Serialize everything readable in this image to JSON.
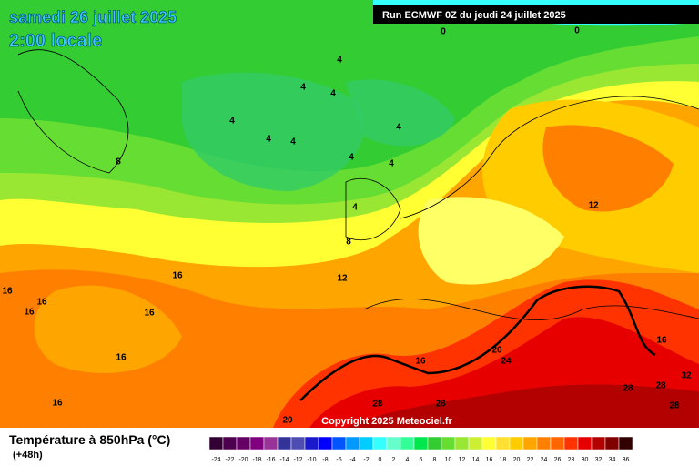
{
  "header": {
    "date": "samedi 26 juillet 2025",
    "time": "2:00 locale",
    "run": "Run ECMWF 0Z du jeudi 24 juillet 2025"
  },
  "footer": {
    "title": "Température à 850hPa (°C)",
    "lead": "(+48h)",
    "copyright": "Copyright 2025 Meteociel.fr"
  },
  "contour_labels": [
    "0",
    "0",
    "4",
    "4",
    "4",
    "4",
    "4",
    "4",
    "4",
    "4",
    "4",
    "8",
    "4",
    "8",
    "12",
    "16",
    "12",
    "16",
    "16",
    "16",
    "16",
    "16",
    "16",
    "20",
    "24",
    "16",
    "16",
    "28",
    "28",
    "28",
    "28",
    "32",
    "28",
    "20"
  ],
  "scale": {
    "labels": [
      -24,
      -22,
      -20,
      -18,
      -16,
      -14,
      -12,
      -10,
      -8,
      -6,
      -4,
      -2,
      0,
      2,
      4,
      6,
      8,
      10,
      12,
      14,
      16,
      18,
      20,
      22,
      24,
      26,
      28,
      30,
      32,
      34,
      36
    ],
    "colors": [
      "#330033",
      "#4d004d",
      "#660066",
      "#800080",
      "#993399",
      "#333399",
      "#4d4db3",
      "#1a1acc",
      "#0000ff",
      "#0055ff",
      "#0099ff",
      "#00ccff",
      "#33ffff",
      "#66ffcc",
      "#33ff99",
      "#00e64d",
      "#33cc33",
      "#66dd33",
      "#99e633",
      "#ccee33",
      "#ffff33",
      "#ffe033",
      "#ffcc00",
      "#ffa500",
      "#ff8000",
      "#ff6600",
      "#ff3300",
      "#e60000",
      "#b30000",
      "#800000",
      "#330000"
    ]
  }
}
